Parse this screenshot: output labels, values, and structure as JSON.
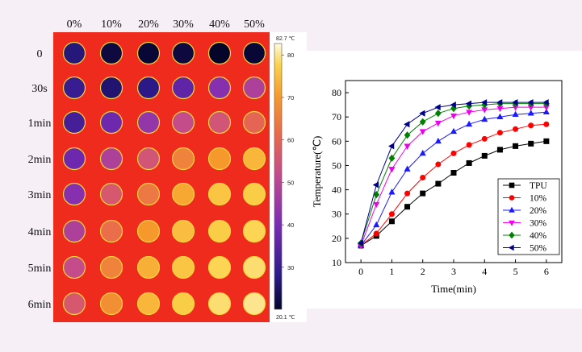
{
  "thermal": {
    "columns": [
      "0%",
      "10%",
      "20%",
      "30%",
      "40%",
      "50%"
    ],
    "rows": [
      "0",
      "30s",
      "1min",
      "2min",
      "3min",
      "4min",
      "5min",
      "6min"
    ],
    "colorbar": {
      "max_label": "82.7 ℃",
      "min_label": "20.1 ℃",
      "min": 20.1,
      "max": 82.7,
      "ticks": [
        "80",
        "70",
        "60",
        "50",
        "40",
        "30"
      ],
      "tick_values": [
        80,
        70,
        60,
        50,
        40,
        30
      ]
    },
    "cell_temperatures": [
      [
        27,
        22,
        21,
        22,
        20,
        21
      ],
      [
        30,
        26,
        28,
        36,
        42,
        48
      ],
      [
        32,
        38,
        44,
        52,
        55,
        60
      ],
      [
        38,
        48,
        55,
        66,
        70,
        74
      ],
      [
        42,
        56,
        64,
        72,
        76,
        77
      ],
      [
        48,
        62,
        70,
        75,
        77,
        78
      ],
      [
        52,
        66,
        73,
        76,
        78,
        79
      ],
      [
        56,
        68,
        74,
        77,
        79,
        80
      ]
    ],
    "colors": {
      "background": "#ef2b1e",
      "panel_border": "#f4d53a"
    }
  },
  "chart_data": {
    "type": "line",
    "x": [
      0,
      0.5,
      1,
      1.5,
      2,
      2.5,
      3,
      3.5,
      4,
      4.5,
      5,
      5.5,
      6
    ],
    "series": [
      {
        "name": "TPU",
        "marker": "square",
        "color": "#000000",
        "values": [
          17,
          21,
          27,
          33,
          38.5,
          42.5,
          47,
          51,
          54,
          56.5,
          58,
          59,
          60
        ]
      },
      {
        "name": "10%",
        "marker": "circle",
        "color": "#ff0000",
        "values": [
          17,
          22,
          30,
          38.5,
          45,
          50.5,
          55,
          58.5,
          61,
          63.5,
          65,
          66.5,
          67
        ]
      },
      {
        "name": "20%",
        "marker": "triangle-up",
        "color": "#1a1aff",
        "values": [
          17,
          25.5,
          39,
          48.5,
          55,
          60,
          64,
          67,
          69,
          70,
          71,
          71.5,
          72
        ]
      },
      {
        "name": "30%",
        "marker": "triangle-down",
        "color": "#ee00ee",
        "values": [
          17,
          34,
          48.5,
          58,
          64,
          67.5,
          70.5,
          72,
          73,
          73.5,
          74,
          74,
          74
        ]
      },
      {
        "name": "40%",
        "marker": "diamond",
        "color": "#008000",
        "values": [
          18,
          38,
          53,
          62.5,
          68,
          71.5,
          73.5,
          74.5,
          75,
          75.5,
          75.5,
          75.5,
          75.5
        ]
      },
      {
        "name": "50%",
        "marker": "triangle-left",
        "color": "#00008b",
        "values": [
          18,
          42,
          58,
          67,
          71.5,
          74,
          75,
          75.5,
          76,
          76,
          76,
          76,
          76
        ]
      }
    ],
    "xlabel": "Time(min)",
    "ylabel": "Temperature(℃)",
    "xlim": [
      -0.5,
      6.5
    ],
    "ylim": [
      10,
      85
    ],
    "xticks": [
      0,
      1,
      2,
      3,
      4,
      5,
      6
    ],
    "yticks": [
      10,
      20,
      30,
      40,
      50,
      60,
      70,
      80
    ],
    "legend_position": "bottom-right",
    "grid": false
  }
}
